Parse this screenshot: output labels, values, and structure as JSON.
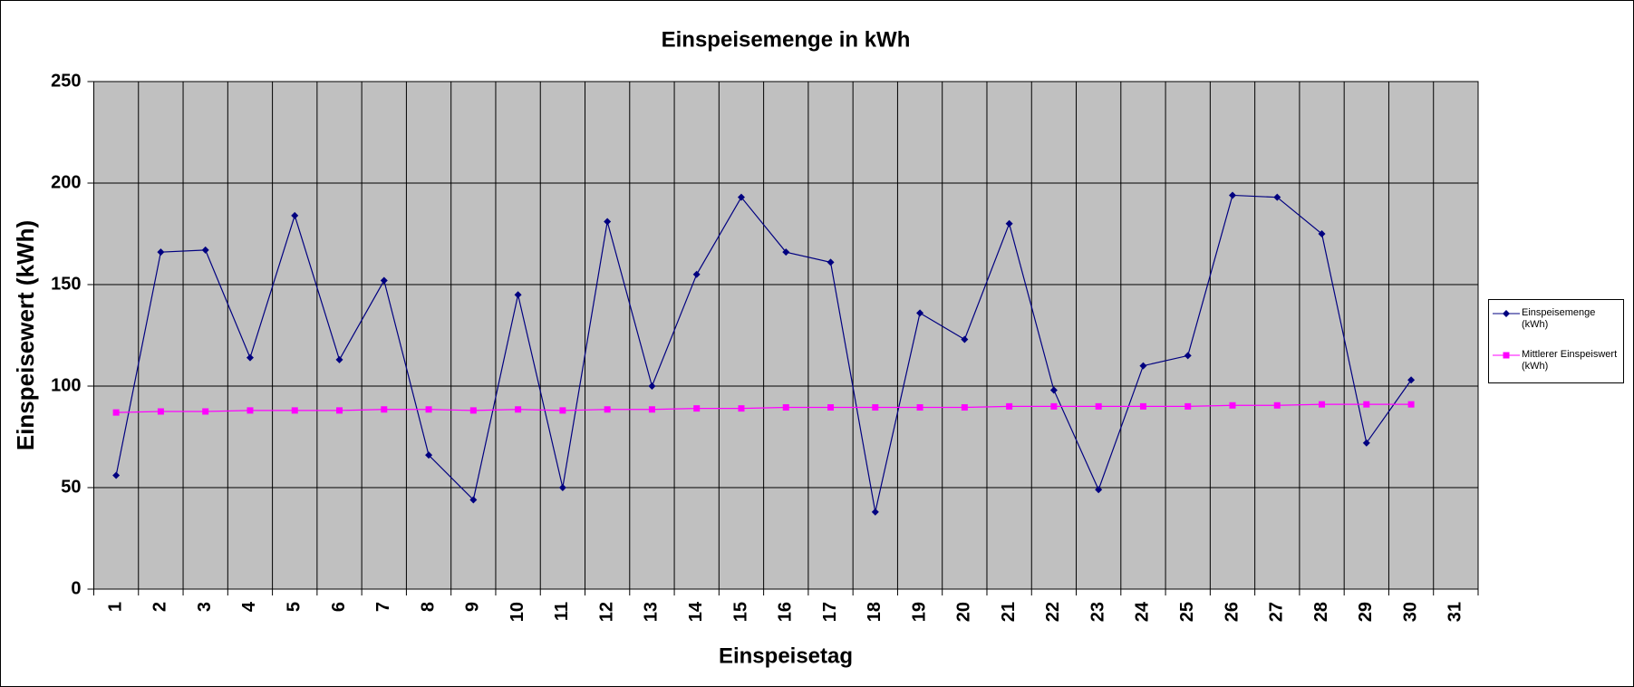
{
  "chart_data": {
    "type": "line",
    "title": "Einspeisemenge in kWh",
    "x_label": "Einspeisetag",
    "y_label": "Einspeisewert  (kWh)",
    "categories": [
      "1",
      "2",
      "3",
      "4",
      "5",
      "6",
      "7",
      "8",
      "9",
      "10",
      "11",
      "12",
      "13",
      "14",
      "15",
      "16",
      "17",
      "18",
      "19",
      "20",
      "21",
      "22",
      "23",
      "24",
      "25",
      "26",
      "27",
      "28",
      "29",
      "30",
      "31"
    ],
    "series": [
      {
        "name": "Einspeisemenge (kWh)",
        "color": "#000080",
        "marker": "diamond",
        "values": [
          56,
          166,
          167,
          114,
          184,
          113,
          152,
          66,
          44,
          145,
          50,
          181,
          100,
          155,
          193,
          166,
          161,
          38,
          136,
          123,
          180,
          98,
          49,
          110,
          115,
          194,
          193,
          175,
          72,
          103,
          null
        ]
      },
      {
        "name": "Mittlerer Einspeiswert (kWh)",
        "color": "#ff00ff",
        "marker": "square",
        "values": [
          87,
          87.5,
          87.5,
          88,
          88,
          88,
          88.5,
          88.5,
          88,
          88.5,
          88,
          88.5,
          88.5,
          89,
          89,
          89.5,
          89.5,
          89.5,
          89.5,
          89.5,
          90,
          90,
          90,
          90,
          90,
          90.5,
          90.5,
          91,
          91,
          91,
          null
        ]
      }
    ],
    "ylim": [
      0,
      250
    ],
    "yticks": [
      0,
      50,
      100,
      150,
      200,
      250
    ],
    "grid": true,
    "legend": "right",
    "plot_background": "#c0c0c0"
  }
}
